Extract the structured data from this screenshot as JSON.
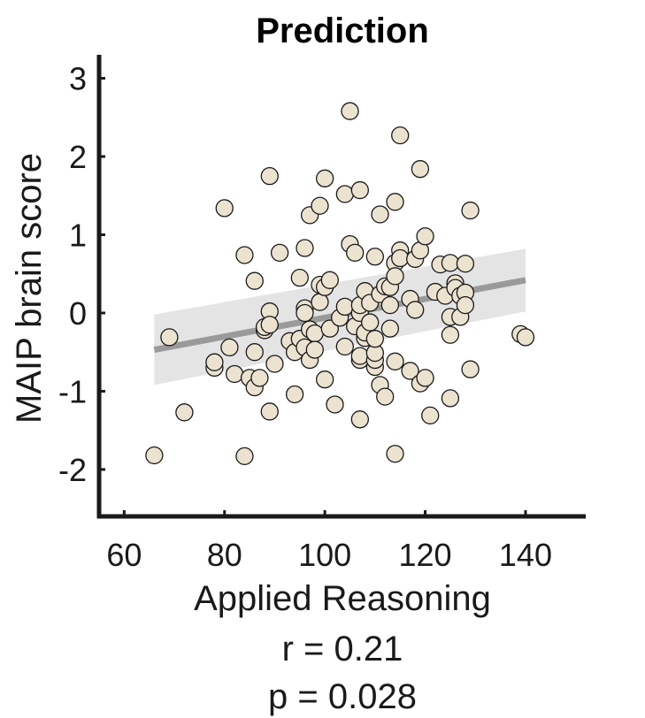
{
  "chart_data": {
    "type": "scatter",
    "title": "Prediction",
    "xlabel": "Applied Reasoning",
    "ylabel": "MAIP brain score",
    "xlim": [
      55,
      152
    ],
    "ylim": [
      -2.6,
      3.3
    ],
    "xticks": [
      60,
      80,
      100,
      120,
      140
    ],
    "yticks": [
      3,
      2,
      1,
      0,
      -1,
      -2
    ],
    "grid": false,
    "stats": {
      "r_text": "r = 0.21",
      "p_text": "p = 0.028"
    },
    "colors": {
      "point_fill": "#ebe2d0",
      "point_stroke": "#1a1a1a",
      "fit_line": "#9a9a9a",
      "ci_band": "#e4e4e4",
      "axis": "#1a1a1a"
    },
    "fit": {
      "x": [
        66,
        140
      ],
      "y": [
        -0.47,
        0.42
      ],
      "ci_lower": [
        -0.92,
        0.02
      ],
      "ci_upper": [
        -0.02,
        0.82
      ]
    },
    "points": [
      [
        66,
        -1.82
      ],
      [
        69,
        -0.31
      ],
      [
        72,
        -1.27
      ],
      [
        78,
        -0.7
      ],
      [
        78,
        -0.63
      ],
      [
        80,
        1.34
      ],
      [
        81,
        -0.44
      ],
      [
        82,
        -0.78
      ],
      [
        84,
        0.74
      ],
      [
        84,
        -1.83
      ],
      [
        85,
        -0.83
      ],
      [
        86,
        -0.95
      ],
      [
        86,
        -0.5
      ],
      [
        86,
        0.41
      ],
      [
        87,
        -0.83
      ],
      [
        88,
        -0.22
      ],
      [
        88,
        -0.18
      ],
      [
        89,
        0.02
      ],
      [
        89,
        -0.15
      ],
      [
        89,
        1.75
      ],
      [
        89,
        -1.26
      ],
      [
        90,
        -0.65
      ],
      [
        91,
        0.77
      ],
      [
        93,
        -0.36
      ],
      [
        94,
        -1.04
      ],
      [
        94,
        -0.5
      ],
      [
        95,
        0.45
      ],
      [
        95,
        -0.33
      ],
      [
        96,
        0.06
      ],
      [
        96,
        0.0
      ],
      [
        96,
        0.83
      ],
      [
        96,
        -0.44
      ],
      [
        97,
        -0.21
      ],
      [
        97,
        -0.6
      ],
      [
        97,
        1.25
      ],
      [
        98,
        -0.26
      ],
      [
        98,
        -0.47
      ],
      [
        99,
        0.36
      ],
      [
        99,
        1.37
      ],
      [
        99,
        0.14
      ],
      [
        100,
        -0.85
      ],
      [
        100,
        1.72
      ],
      [
        100,
        0.33
      ],
      [
        101,
        -0.2
      ],
      [
        101,
        0.42
      ],
      [
        102,
        -1.17
      ],
      [
        103,
        -0.06
      ],
      [
        104,
        1.52
      ],
      [
        104,
        -0.43
      ],
      [
        104,
        0.08
      ],
      [
        105,
        2.58
      ],
      [
        105,
        0.88
      ],
      [
        106,
        -0.17
      ],
      [
        106,
        0.77
      ],
      [
        107,
        1.57
      ],
      [
        107,
        -1.36
      ],
      [
        107,
        -0.6
      ],
      [
        107,
        0.0
      ],
      [
        107,
        -0.55
      ],
      [
        107,
        0.1
      ],
      [
        108,
        0.28
      ],
      [
        108,
        -0.32
      ],
      [
        108,
        -0.25
      ],
      [
        109,
        -0.12
      ],
      [
        109,
        0.13
      ],
      [
        110,
        0.72
      ],
      [
        110,
        -0.69
      ],
      [
        110,
        -0.6
      ],
      [
        110,
        -0.51
      ],
      [
        110,
        -0.33
      ],
      [
        111,
        1.26
      ],
      [
        111,
        -0.92
      ],
      [
        111,
        0.24
      ],
      [
        112,
        -1.07
      ],
      [
        112,
        0.34
      ],
      [
        113,
        0.33
      ],
      [
        113,
        -0.2
      ],
      [
        113,
        0.1
      ],
      [
        114,
        1.42
      ],
      [
        114,
        0.64
      ],
      [
        114,
        0.47
      ],
      [
        114,
        -1.8
      ],
      [
        114,
        -0.62
      ],
      [
        115,
        2.27
      ],
      [
        115,
        0.8
      ],
      [
        115,
        0.7
      ],
      [
        117,
        -0.74
      ],
      [
        117,
        0.18
      ],
      [
        118,
        0.69
      ],
      [
        118,
        0.04
      ],
      [
        119,
        1.84
      ],
      [
        119,
        0.8
      ],
      [
        119,
        -0.9
      ],
      [
        120,
        0.98
      ],
      [
        120,
        -0.83
      ],
      [
        121,
        -1.31
      ],
      [
        122,
        0.27
      ],
      [
        123,
        0.62
      ],
      [
        124,
        0.22
      ],
      [
        125,
        0.64
      ],
      [
        125,
        -0.05
      ],
      [
        125,
        -0.28
      ],
      [
        125,
        -1.09
      ],
      [
        126,
        0.38
      ],
      [
        126,
        0.32
      ],
      [
        127,
        0.22
      ],
      [
        127,
        -0.05
      ],
      [
        128,
        0.63
      ],
      [
        128,
        0.26
      ],
      [
        128,
        0.1
      ],
      [
        129,
        1.31
      ],
      [
        129,
        -0.72
      ],
      [
        139,
        -0.27
      ],
      [
        140,
        -0.31
      ]
    ]
  }
}
